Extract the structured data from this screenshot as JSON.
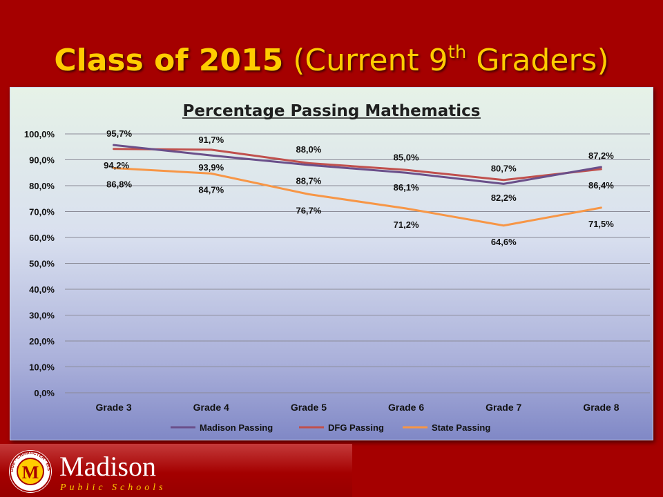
{
  "slide": {
    "title_bold": "Class of 2015",
    "title_rest": " (Current 9",
    "title_sup": "th",
    "title_end": " Graders)"
  },
  "colors": {
    "background": "#a50000",
    "title": "#ffcc00",
    "madison": "#6a4f8a",
    "dfg": "#c0504d",
    "state": "#f79646"
  },
  "chart_data": {
    "type": "line",
    "title": "Percentage Passing Mathematics",
    "categories": [
      "Grade 3",
      "Grade 4",
      "Grade 5",
      "Grade 6",
      "Grade 7",
      "Grade 8"
    ],
    "yticks": [
      "0,0%",
      "10,0%",
      "20,0%",
      "30,0%",
      "40,0%",
      "50,0%",
      "60,0%",
      "70,0%",
      "80,0%",
      "90,0%",
      "100,0%"
    ],
    "ylim": [
      0,
      100
    ],
    "grid": true,
    "legend_position": "bottom",
    "series": [
      {
        "name": "Madison Passing",
        "color": "#6a4f8a",
        "values": [
          95.7,
          91.7,
          88.0,
          85.0,
          80.7,
          87.2
        ],
        "labels": [
          "95,7%",
          "91,7%",
          "88,0%",
          "85,0%",
          "80,7%",
          "87,2%"
        ]
      },
      {
        "name": "DFG Passing",
        "color": "#c0504d",
        "values": [
          94.2,
          93.9,
          88.7,
          86.1,
          82.2,
          86.4
        ],
        "labels": [
          "94,2%",
          "93,9%",
          "88,7%",
          "86,1%",
          "82,2%",
          "86,4%"
        ]
      },
      {
        "name": "State Passing",
        "color": "#f79646",
        "values": [
          86.8,
          84.7,
          76.7,
          71.2,
          64.6,
          71.5
        ],
        "labels": [
          "86,8%",
          "84,7%",
          "76,7%",
          "71,2%",
          "64,6%",
          "71,5%"
        ]
      }
    ]
  },
  "logo": {
    "name": "Madison",
    "tagline": "Public Schools",
    "seal_letter": "M",
    "seal_text": "KNOWLEDGE · CHARACTER · INSPIRATION"
  }
}
